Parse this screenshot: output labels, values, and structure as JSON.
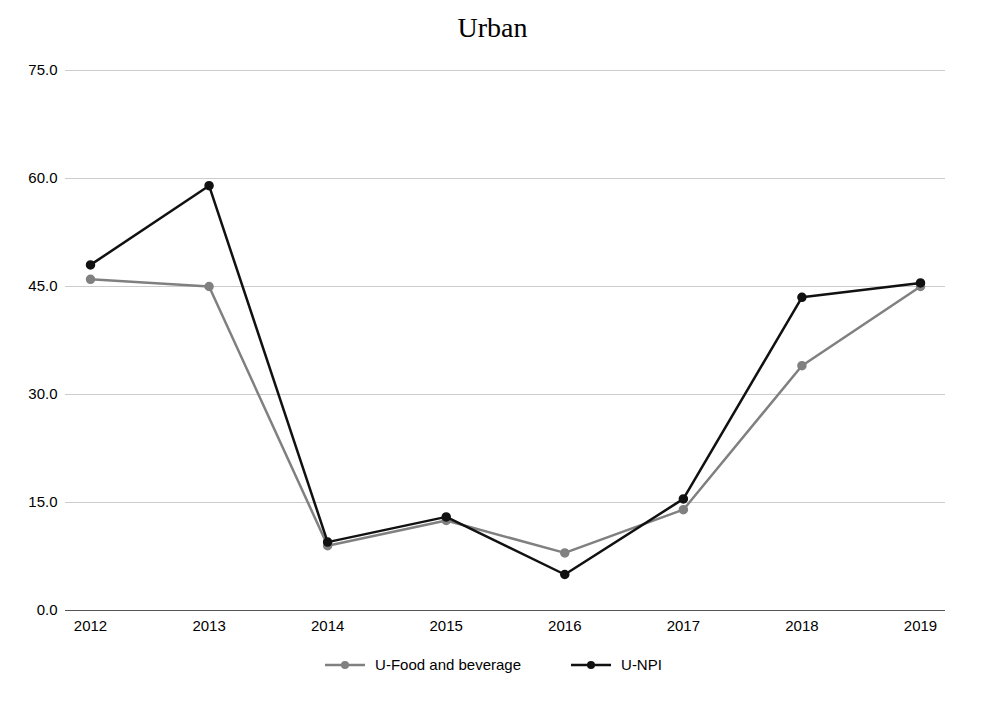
{
  "chart_data": {
    "type": "line",
    "title": "Urban",
    "x": [
      2012,
      2013,
      2014,
      2015,
      2016,
      2017,
      2018,
      2019
    ],
    "series": [
      {
        "name": "U-Food and beverage",
        "color": "#808080",
        "marker": "circle",
        "values": [
          46.0,
          45.0,
          9.0,
          12.5,
          8.0,
          14.0,
          34.0,
          45.0
        ]
      },
      {
        "name": "U-NPI",
        "color": "#111111",
        "marker": "circle",
        "values": [
          48.0,
          59.0,
          9.5,
          13.0,
          5.0,
          15.5,
          43.5,
          45.5
        ]
      }
    ],
    "xlim": [
      2012,
      2019
    ],
    "xticks": [
      2012,
      2013,
      2014,
      2015,
      2016,
      2017,
      2018,
      2019
    ],
    "ylim": [
      0.0,
      75.0
    ],
    "yticks": [
      {
        "value": 0.0,
        "label": "0.0"
      },
      {
        "value": 15.0,
        "label": "15.0"
      },
      {
        "value": 30.0,
        "label": "30.0"
      },
      {
        "value": 45.0,
        "label": "45.0"
      },
      {
        "value": 60.0,
        "label": "60.0"
      },
      {
        "value": 75.0,
        "label": "75.0"
      }
    ],
    "grid": true,
    "legend": "bottom"
  }
}
